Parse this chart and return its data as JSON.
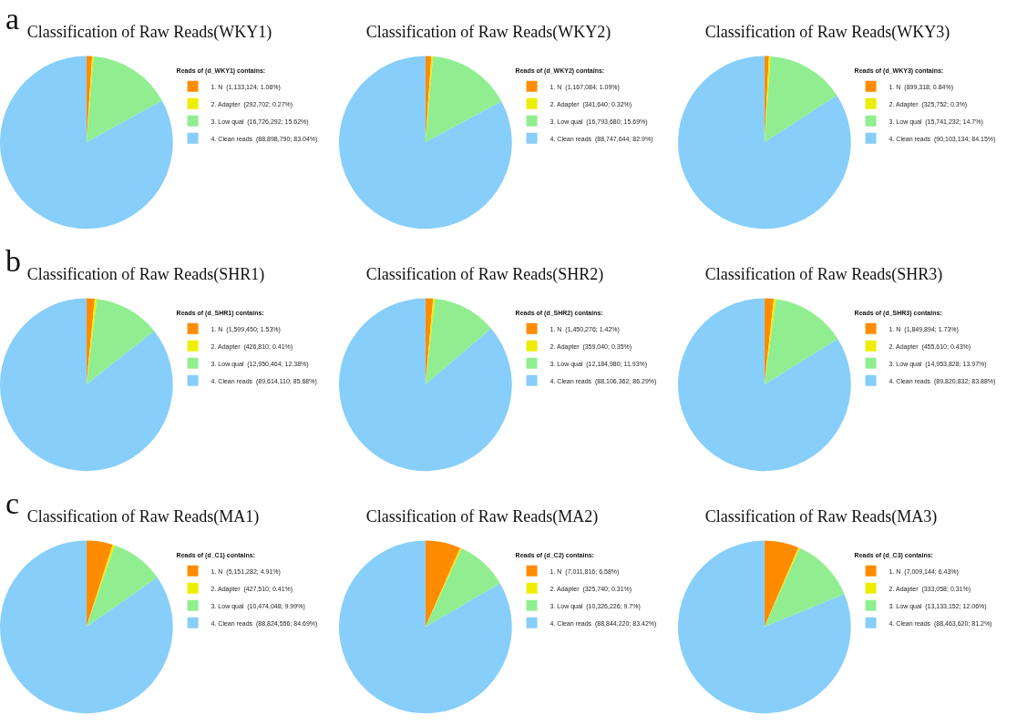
{
  "chart_data": [
    {
      "type": "pie",
      "title": "Classification of Raw Reads(WKY1)",
      "annotations": [
        "a"
      ],
      "legend": "right",
      "legend_title": "Reads of (d_WKY1) contains:",
      "categories": [
        "1. N  (1,133,124; 1.06%)",
        "2. Adapter  (292,702; 0.27%)",
        "3. Low qual  (16,726,292; 15.62%)",
        "4. Clean reads  (88,898,790; 83.04%)"
      ],
      "values": [
        1133124,
        292702,
        16726292,
        88898790
      ],
      "colors": [
        "#ff8c00",
        "#eeee00",
        "#90ee90",
        "#87cefa"
      ]
    },
    {
      "type": "pie",
      "title": "Classification of Raw Reads(WKY2)",
      "legend": "right",
      "legend_title": "Reads of (d_WKY2) contains:",
      "categories": [
        "1. N  (1,167,084; 1.09%)",
        "2. Adapter  (341,640; 0.32%)",
        "3. Low qual  (16,793,680; 15.69%)",
        "4. Clean reads  (88,747,644; 82.9%)"
      ],
      "values": [
        1167084,
        341640,
        16793680,
        88747644
      ],
      "colors": [
        "#ff8c00",
        "#eeee00",
        "#90ee90",
        "#87cefa"
      ]
    },
    {
      "type": "pie",
      "title": "Classification of Raw Reads(WKY3)",
      "legend": "right",
      "legend_title": "Reads of (d_WKY3) contains:",
      "categories": [
        "1. N  (899,318; 0.84%)",
        "2. Adapter  (325,752; 0.3%)",
        "3. Low qual  (15,741,232; 14.7%)",
        "4. Clean reads  (90,103,134; 84.15%)"
      ],
      "values": [
        899318,
        325752,
        15741232,
        90103134
      ],
      "colors": [
        "#ff8c00",
        "#eeee00",
        "#90ee90",
        "#87cefa"
      ]
    },
    {
      "type": "pie",
      "title": "Classification of Raw Reads(SHR1)",
      "annotations": [
        "b"
      ],
      "legend": "right",
      "legend_title": "Reads of (d_SHR1) contains:",
      "categories": [
        "1. N  (1,599,450; 1.53%)",
        "2. Adapter  (426,810; 0.41%)",
        "3. Low qual  (12,950,464; 12.38%)",
        "4. Clean reads  (89,614,110; 85.68%)"
      ],
      "values": [
        1599450,
        426810,
        12950464,
        89614110
      ],
      "colors": [
        "#ff8c00",
        "#eeee00",
        "#90ee90",
        "#87cefa"
      ]
    },
    {
      "type": "pie",
      "title": "Classification of Raw Reads(SHR2)",
      "legend": "right",
      "legend_title": "Reads of (d_SHR2) contains:",
      "categories": [
        "1. N  (1,450,276; 1.42%)",
        "2. Adapter  (359,040; 0.35%)",
        "3. Low qual  (12,184,980; 11.93%)",
        "4. Clean reads  (88,106,362; 86.29%)"
      ],
      "values": [
        1450276,
        359040,
        12184980,
        88106362
      ],
      "colors": [
        "#ff8c00",
        "#eeee00",
        "#90ee90",
        "#87cefa"
      ]
    },
    {
      "type": "pie",
      "title": "Classification of Raw Reads(SHR3)",
      "legend": "right",
      "legend_title": "Reads of (d_SHR3) contains:",
      "categories": [
        "1. N  (1,849,894; 1.73%)",
        "2. Adapter  (455,610; 0.43%)",
        "3. Low qual  (14,953,828; 13.97%)",
        "4. Clean reads  (89,820,832; 83.88%)"
      ],
      "values": [
        1849894,
        455610,
        14953828,
        89820832
      ],
      "colors": [
        "#ff8c00",
        "#eeee00",
        "#90ee90",
        "#87cefa"
      ]
    },
    {
      "type": "pie",
      "title": "Classification of Raw Reads(MA1)",
      "annotations": [
        "c"
      ],
      "legend": "right",
      "legend_title": "Reads of (d_C1) contains:",
      "categories": [
        "1. N  (5,151,282; 4.91%)",
        "2. Adapter  (427,510; 0.41%)",
        "3. Low qual  (10,474,048; 9.99%)",
        "4. Clean reads  (88,824,556; 84.69%)"
      ],
      "values": [
        5151282,
        427510,
        10474048,
        88824556
      ],
      "colors": [
        "#ff8c00",
        "#eeee00",
        "#90ee90",
        "#87cefa"
      ]
    },
    {
      "type": "pie",
      "title": "Classification of Raw Reads(MA2)",
      "legend": "right",
      "legend_title": "Reads of (d_C2) contains:",
      "categories": [
        "1. N  (7,011,816; 6.58%)",
        "2. Adapter  (325,740; 0.31%)",
        "3. Low qual  (10,326,226; 9.7%)",
        "4. Clean reads  (88,844,220; 83.42%)"
      ],
      "values": [
        7011816,
        325740,
        10326226,
        88844220
      ],
      "colors": [
        "#ff8c00",
        "#eeee00",
        "#90ee90",
        "#87cefa"
      ]
    },
    {
      "type": "pie",
      "title": "Classification of Raw Reads(MA3)",
      "legend": "right",
      "legend_title": "Reads of (d_C3) contains:",
      "categories": [
        "1. N  (7,009,144; 6.43%)",
        "2. Adapter  (333,058; 0.31%)",
        "3. Low qual  (13,133,152; 12.06%)",
        "4. Clean reads  (88,463,620; 81.2%)"
      ],
      "values": [
        7009144,
        333058,
        13133152,
        88463620
      ],
      "colors": [
        "#ff8c00",
        "#eeee00",
        "#90ee90",
        "#87cefa"
      ]
    }
  ]
}
